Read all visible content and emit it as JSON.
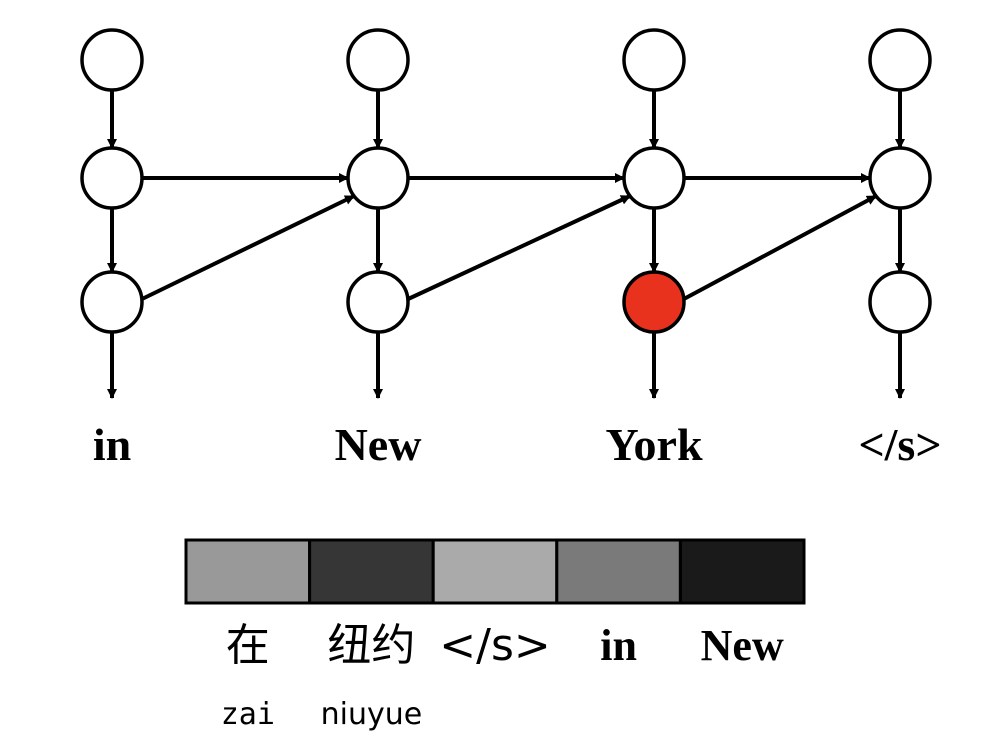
{
  "decoder": {
    "outputs": [
      "in",
      "New",
      "York",
      "</s>"
    ],
    "highlighted_column": 2,
    "highlight_color": "#e8321e",
    "node_color": "#ffffff",
    "stroke_color": "#000000"
  },
  "attention": {
    "cells": [
      {
        "label": "在",
        "pinyin": "zai",
        "color": "#999999"
      },
      {
        "label": "纽约",
        "pinyin": "niuyue",
        "color": "#363636"
      },
      {
        "label": "</s>",
        "pinyin": "",
        "color": "#aaaaaa"
      },
      {
        "label": "in",
        "pinyin": "",
        "color": "#7a7a7a"
      },
      {
        "label": "New",
        "pinyin": "",
        "color": "#1a1a1a"
      }
    ]
  }
}
